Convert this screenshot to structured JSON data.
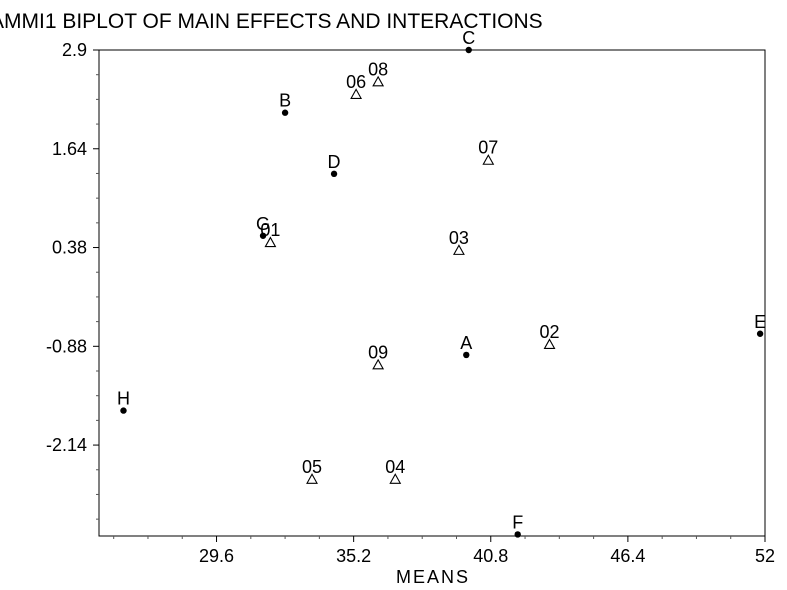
{
  "chart_data": {
    "type": "scatter",
    "title": "AMMI1 BIPLOT OF MAIN EFFECTS AND INTERACTIONS",
    "xlabel": "MEANS",
    "ylabel": "",
    "xlim": [
      24.8,
      52
    ],
    "ylim": [
      -3.3,
      2.9
    ],
    "xticks": [
      {
        "value": 29.6,
        "label": "29.6"
      },
      {
        "value": 35.2,
        "label": "35.2"
      },
      {
        "value": 40.8,
        "label": "40.8"
      },
      {
        "value": 46.4,
        "label": "46.4"
      },
      {
        "value": 52,
        "label": "52"
      }
    ],
    "yticks": [
      {
        "value": 2.9,
        "label": "2.9"
      },
      {
        "value": 1.64,
        "label": "1.64"
      },
      {
        "value": 0.38,
        "label": "0.38"
      },
      {
        "value": -0.88,
        "label": "-0.88"
      },
      {
        "value": -2.14,
        "label": "-2.14"
      }
    ],
    "grid": false,
    "series": [
      {
        "marker": "dot",
        "points": [
          {
            "label": "A",
            "x": 39.8,
            "y": -0.99
          },
          {
            "label": "B",
            "x": 32.4,
            "y": 2.1
          },
          {
            "label": "C",
            "x": 39.9,
            "y": 2.9
          },
          {
            "label": "D",
            "x": 34.4,
            "y": 1.32
          },
          {
            "label": "E",
            "x": 51.8,
            "y": -0.72
          },
          {
            "label": "F",
            "x": 41.9,
            "y": -3.28
          },
          {
            "label": "G",
            "x": 31.5,
            "y": 0.53
          },
          {
            "label": "H",
            "x": 25.8,
            "y": -1.7
          }
        ]
      },
      {
        "marker": "triangle",
        "points": [
          {
            "label": "01",
            "x": 31.8,
            "y": 0.45
          },
          {
            "label": "02",
            "x": 43.2,
            "y": -0.85
          },
          {
            "label": "03",
            "x": 39.5,
            "y": 0.35
          },
          {
            "label": "04",
            "x": 36.9,
            "y": -2.57
          },
          {
            "label": "05",
            "x": 33.5,
            "y": -2.57
          },
          {
            "label": "06",
            "x": 35.3,
            "y": 2.34
          },
          {
            "label": "07",
            "x": 40.7,
            "y": 1.5
          },
          {
            "label": "08",
            "x": 36.2,
            "y": 2.5
          },
          {
            "label": "09",
            "x": 36.2,
            "y": -1.11
          }
        ]
      }
    ]
  }
}
